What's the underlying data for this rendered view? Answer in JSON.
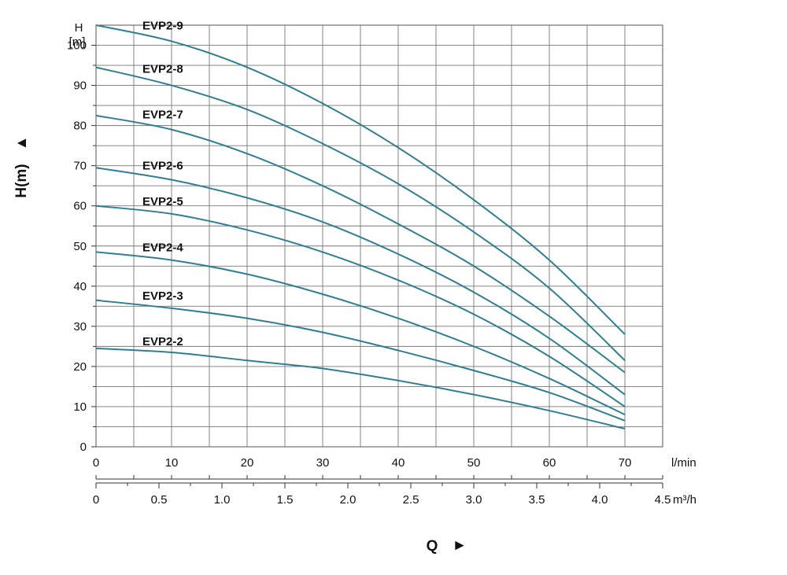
{
  "chart_data": {
    "type": "line",
    "y_axis": {
      "symbol": "H",
      "unit": "[m]",
      "label": "H(m)",
      "arrow": "▲",
      "ylim": [
        0,
        105
      ],
      "ticks": [
        "0",
        "10",
        "20",
        "30",
        "40",
        "50",
        "60",
        "70",
        "80",
        "90",
        "100"
      ]
    },
    "x_axis_flow": {
      "unit": "l/min",
      "xlim": [
        0,
        75
      ],
      "ticks": [
        "0",
        "10",
        "20",
        "30",
        "40",
        "50",
        "60",
        "70"
      ]
    },
    "x_axis_m3h": {
      "unit": "m³/h",
      "ticks": [
        "0",
        "0.5",
        "1.0",
        "1.5",
        "2.0",
        "2.5",
        "3.0",
        "3.5",
        "4.0",
        "4.5"
      ]
    },
    "x_label": "Q",
    "x_arrow": "►",
    "grid": true,
    "line_color": "#2e7f91",
    "x": [
      0,
      10,
      20,
      30,
      40,
      50,
      60,
      70
    ],
    "series": [
      {
        "name": "EVP2-9",
        "values": [
          105,
          101,
          94.5,
          85.5,
          74.5,
          61.5,
          46.5,
          28
        ]
      },
      {
        "name": "EVP2-8",
        "values": [
          94.5,
          90,
          84,
          75.5,
          65.5,
          53.5,
          39.5,
          21.5
        ]
      },
      {
        "name": "EVP2-7",
        "values": [
          82.5,
          79,
          73,
          65,
          55.5,
          45,
          32.5,
          18.5
        ]
      },
      {
        "name": "EVP2-6",
        "values": [
          69.5,
          66.5,
          62,
          56,
          48,
          38.5,
          27,
          13
        ]
      },
      {
        "name": "EVP2-5",
        "values": [
          60,
          58,
          54,
          48.5,
          41.5,
          33,
          22.5,
          10
        ]
      },
      {
        "name": "EVP2-4",
        "values": [
          48.5,
          46.5,
          43,
          38,
          32,
          25,
          17,
          8
        ]
      },
      {
        "name": "EVP2-3",
        "values": [
          36.5,
          34.5,
          32,
          28.5,
          24,
          19,
          13.5,
          6.5
        ]
      },
      {
        "name": "EVP2-2",
        "values": [
          24.5,
          23.5,
          21.5,
          19.5,
          16.5,
          13,
          9,
          4.5
        ]
      }
    ]
  }
}
